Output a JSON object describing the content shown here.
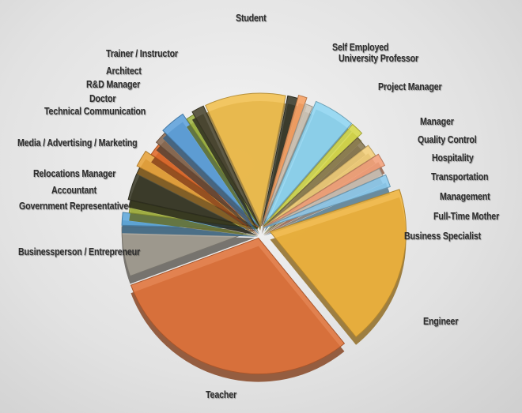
{
  "chart_data": {
    "type": "pie",
    "style": "3d-exploded",
    "title": "",
    "slices": [
      {
        "label": "Student",
        "value": 10,
        "color": "#f2c04e"
      },
      {
        "label": "Self Employed",
        "value": 1.2,
        "color": "#3a3a2a"
      },
      {
        "label": "University Professor",
        "value": 1,
        "color": "#f7a062"
      },
      {
        "label": "Project Manager",
        "value": 1,
        "color": "#cfc6b8"
      },
      {
        "label": "Manager",
        "value": 5,
        "color": "#8fd6f2"
      },
      {
        "label": "Quality Control",
        "value": 1.5,
        "color": "#d6d84a"
      },
      {
        "label": "Hospitality",
        "value": 1.5,
        "color": "#8a7a52"
      },
      {
        "label": "Transportation",
        "value": 1.5,
        "color": "#f4cf7a"
      },
      {
        "label": "Management",
        "value": 1.5,
        "color": "#f4a07a"
      },
      {
        "label": "Full-Time Mother",
        "value": 1,
        "color": "#c9c2b6"
      },
      {
        "label": "Business Specialist",
        "value": 1.5,
        "color": "#8ccbee"
      },
      {
        "label": "Engineer",
        "value": 19,
        "color": "#f0b43c"
      },
      {
        "label": "Teacher",
        "value": 30,
        "color": "#e0733a"
      },
      {
        "label": "Businessperson / Entrepreneur",
        "value": 6,
        "color": "#a39d92"
      },
      {
        "label": "Government Representative",
        "value": 1.5,
        "color": "#5fa8dc"
      },
      {
        "label": "Accountant",
        "value": 1.5,
        "color": "#a5b442"
      },
      {
        "label": "Relocations Manager",
        "value": 4,
        "color": "#3a3a28"
      },
      {
        "label": "Media / Advertising / Marketing",
        "value": 2,
        "color": "#e7a33a"
      },
      {
        "label": "Technical Communication",
        "value": 1.5,
        "color": "#e06a2a"
      },
      {
        "label": "Doctor",
        "value": 1.5,
        "color": "#8a6a52"
      },
      {
        "label": "R&D Manager",
        "value": 3,
        "color": "#5fa2dc"
      },
      {
        "label": "Architect",
        "value": 1,
        "color": "#9fb442"
      },
      {
        "label": "Trainer / Instructor",
        "value": 1.5,
        "color": "#4a4630"
      }
    ]
  }
}
